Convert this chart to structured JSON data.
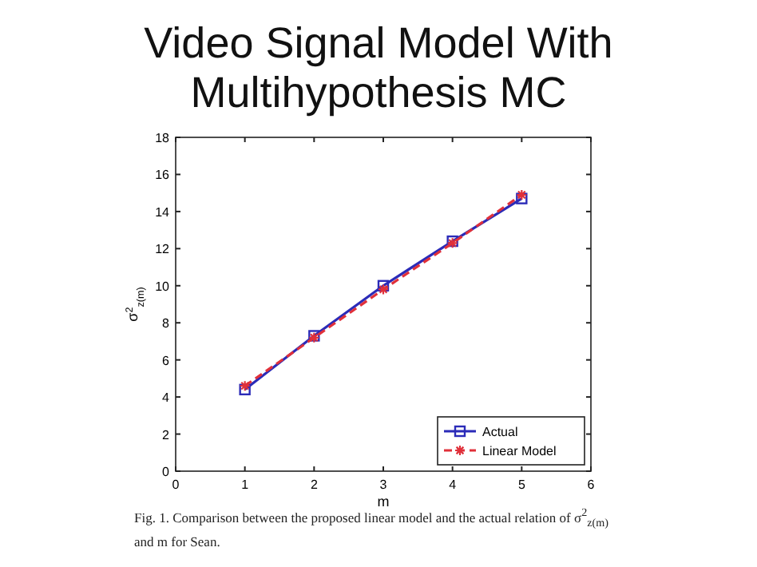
{
  "chart_data": {
    "type": "line",
    "title": "Video Signal Model With Multihypothesis MC",
    "xlabel": "m",
    "ylabel": "σ$^{2}$$_{z(m)}$",
    "x": [
      1,
      2,
      3,
      4,
      5
    ],
    "series": [
      {
        "name": "Actual",
        "color": "#2b2bb8",
        "values": [
          4.4,
          7.3,
          10.0,
          12.4,
          14.7
        ],
        "marker": "square",
        "line_style": "solid"
      },
      {
        "name": "Linear Model",
        "color": "#e0303a",
        "values": [
          4.6,
          7.2,
          9.8,
          12.3,
          14.9
        ],
        "marker": "cross",
        "line_style": "dashed"
      }
    ],
    "xlim": [
      0,
      6
    ],
    "xticks": [
      0,
      1,
      2,
      3,
      4,
      5,
      6
    ],
    "ylim": [
      0,
      18
    ],
    "yticks": [
      0,
      2,
      4,
      6,
      8,
      10,
      12,
      14,
      16,
      18
    ],
    "grid": false,
    "legend": "bottom right",
    "annotations": [
      "Fig. 1.   Comparison between the proposed linear model and the actual relation of σ$^{2}$$_{z(m)}$ and m for Sean."
    ]
  }
}
